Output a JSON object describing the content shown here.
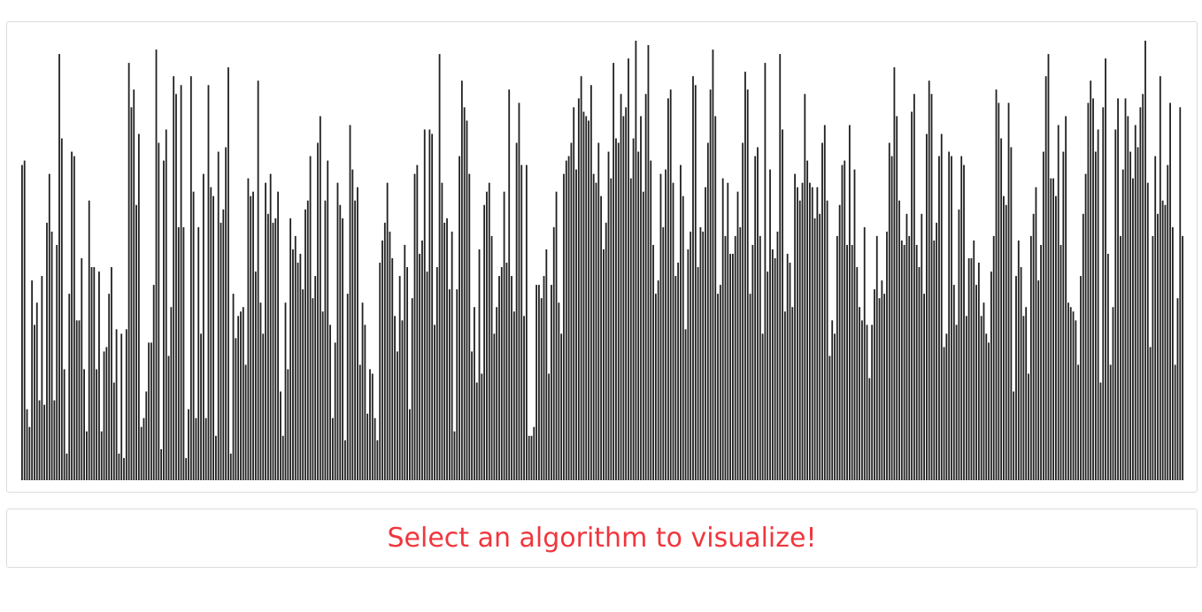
{
  "visualizer": {
    "bar_color": "#212121",
    "background_color": "#ffffff",
    "values": [
      0.71,
      0.72,
      0.16,
      0.12,
      0.45,
      0.35,
      0.4,
      0.18,
      0.46,
      0.17,
      0.58,
      0.69,
      0.56,
      0.18,
      0.53,
      0.96,
      0.77,
      0.25,
      0.06,
      0.42,
      0.74,
      0.73,
      0.36,
      0.36,
      0.5,
      0.25,
      0.11,
      0.63,
      0.48,
      0.48,
      0.25,
      0.47,
      0.11,
      0.29,
      0.3,
      0.42,
      0.48,
      0.22,
      0.34,
      0.06,
      0.33,
      0.05,
      0.34,
      0.94,
      0.84,
      0.88,
      0.62,
      0.78,
      0.12,
      0.14,
      0.2,
      0.31,
      0.31,
      0.44,
      0.97,
      0.76,
      0.07,
      0.72,
      0.79,
      0.28,
      0.39,
      0.91,
      0.87,
      0.57,
      0.89,
      0.57,
      0.05,
      0.16,
      0.91,
      0.65,
      0.14,
      0.57,
      0.33,
      0.69,
      0.14,
      0.89,
      0.66,
      0.64,
      0.1,
      0.74,
      0.58,
      0.61,
      0.75,
      0.93,
      0.06,
      0.42,
      0.32,
      0.37,
      0.38,
      0.39,
      0.26,
      0.68,
      0.64,
      0.65,
      0.47,
      0.9,
      0.4,
      0.33,
      0.67,
      0.6,
      0.69,
      0.58,
      0.59,
      0.65,
      0.2,
      0.1,
      0.4,
      0.25,
      0.59,
      0.52,
      0.55,
      0.49,
      0.51,
      0.43,
      0.61,
      0.63,
      0.73,
      0.41,
      0.46,
      0.76,
      0.82,
      0.38,
      0.63,
      0.72,
      0.35,
      0.14,
      0.31,
      0.67,
      0.62,
      0.59,
      0.09,
      0.42,
      0.8,
      0.7,
      0.63,
      0.66,
      0.26,
      0.4,
      0.35,
      0.15,
      0.25,
      0.24,
      0.14,
      0.09,
      0.49,
      0.54,
      0.58,
      0.67,
      0.56,
      0.5,
      0.37,
      0.29,
      0.46,
      0.36,
      0.53,
      0.48,
      0.16,
      0.41,
      0.69,
      0.71,
      0.51,
      0.54,
      0.79,
      0.47,
      0.79,
      0.78,
      0.35,
      0.48,
      0.96,
      0.67,
      0.58,
      0.59,
      0.43,
      0.56,
      0.11,
      0.43,
      0.73,
      0.9,
      0.84,
      0.81,
      0.69,
      0.29,
      0.39,
      0.22,
      0.52,
      0.24,
      0.62,
      0.65,
      0.67,
      0.55,
      0.33,
      0.39,
      0.46,
      0.48,
      0.65,
      0.49,
      0.88,
      0.46,
      0.38,
      0.76,
      0.85,
      0.71,
      0.37,
      0.71,
      0.1,
      0.1,
      0.12,
      0.44,
      0.44,
      0.41,
      0.46,
      0.52,
      0.24,
      0.44,
      0.57,
      0.65,
      0.4,
      0.33,
      0.69,
      0.72,
      0.73,
      0.76,
      0.84,
      0.7,
      0.86,
      0.91,
      0.83,
      0.82,
      0.81,
      0.89,
      0.69,
      0.67,
      0.76,
      0.64,
      0.52,
      0.58,
      0.74,
      0.68,
      0.94,
      0.77,
      0.76,
      0.87,
      0.82,
      0.84,
      0.95,
      0.68,
      0.77,
      0.99,
      0.74,
      0.82,
      0.65,
      0.87,
      0.98,
      0.72,
      0.53,
      0.42,
      0.45,
      0.69,
      0.57,
      0.7,
      0.86,
      0.88,
      0.67,
      0.46,
      0.49,
      0.71,
      0.64,
      0.34,
      0.52,
      0.56,
      0.91,
      0.89,
      0.48,
      0.57,
      0.56,
      0.66,
      0.76,
      0.88,
      0.97,
      0.82,
      0.42,
      0.44,
      0.68,
      0.55,
      0.67,
      0.51,
      0.51,
      0.55,
      0.65,
      0.57,
      0.76,
      0.92,
      0.88,
      0.42,
      0.53,
      0.73,
      0.75,
      0.55,
      0.33,
      0.94,
      0.47,
      0.7,
      0.52,
      0.5,
      0.56,
      0.96,
      0.79,
      0.38,
      0.51,
      0.49,
      0.39,
      0.69,
      0.66,
      0.63,
      0.67,
      0.87,
      0.72,
      0.67,
      0.66,
      0.59,
      0.66,
      0.6,
      0.76,
      0.8,
      0.63,
      0.28,
      0.36,
      0.33,
      0.55,
      0.62,
      0.71,
      0.72,
      0.53,
      0.8,
      0.53,
      0.7,
      0.48,
      0.39,
      0.36,
      0.57,
      0.35,
      0.23,
      0.35,
      0.43,
      0.55,
      0.41,
      0.45,
      0.42,
      0.56,
      0.76,
      0.73,
      0.93,
      0.82,
      0.63,
      0.54,
      0.53,
      0.6,
      0.55,
      0.83,
      0.87,
      0.53,
      0.48,
      0.6,
      0.42,
      0.78,
      0.9,
      0.87,
      0.54,
      0.58,
      0.73,
      0.78,
      0.3,
      0.33,
      0.74,
      0.73,
      0.44,
      0.35,
      0.61,
      0.73,
      0.71,
      0.37,
      0.5,
      0.5,
      0.54,
      0.44,
      0.49,
      0.37,
      0.4,
      0.33,
      0.31,
      0.47,
      0.55,
      0.88,
      0.85,
      0.77,
      0.64,
      0.62,
      0.85,
      0.75,
      0.2,
      0.46,
      0.54,
      0.48,
      0.37,
      0.39,
      0.24,
      0.55,
      0.6,
      0.66,
      0.45,
      0.53,
      0.74,
      0.91,
      0.96,
      0.68,
      0.68,
      0.64,
      0.8,
      0.53,
      0.74,
      0.82,
      0.4,
      0.39,
      0.38,
      0.36,
      0.26,
      0.46,
      0.6,
      0.69,
      0.85,
      0.9,
      0.86,
      0.74,
      0.79,
      0.22,
      0.84,
      0.95,
      0.51,
      0.26,
      0.39,
      0.79,
      0.86,
      0.55,
      0.7,
      0.86,
      0.82,
      0.74,
      0.68,
      0.8,
      0.75,
      0.84,
      0.87,
      0.99,
      0.67,
      0.3,
      0.55,
      0.73,
      0.6,
      0.91,
      0.63,
      0.62,
      0.71,
      0.85,
      0.57,
      0.26,
      0.41,
      0.84,
      0.55
    ]
  },
  "status": {
    "message": "Select an algorithm to visualize!",
    "color": "#f0363d"
  }
}
